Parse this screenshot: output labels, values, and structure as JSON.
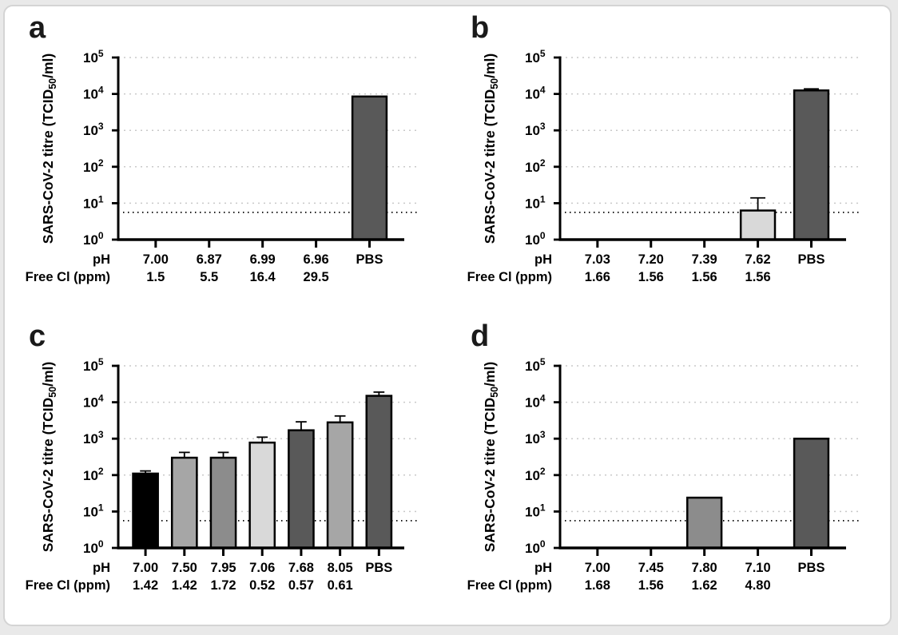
{
  "figure": {
    "panel_labels": [
      "a",
      "b",
      "c",
      "d"
    ],
    "y_axis_title": {
      "pre": "SARS-CoV-2 titre (TCID",
      "sub": "50",
      "post": "/ml)"
    },
    "x_row1_header": "pH",
    "x_row2_header": "Free Cl (ppm)",
    "y_tick_base": "10",
    "y_tick_exponents": [
      0,
      1,
      2,
      3,
      4,
      5
    ],
    "colors": {
      "axis": "#000000",
      "gridline": "#c9c9c9",
      "detection_line": "#000000",
      "bar_dark_gray": "#595959",
      "bar_black": "#000000",
      "bar_medium_gray": "#a6a6a6",
      "bar_medium_dark_gray": "#8c8c8c",
      "bar_light_gray": "#d9d9d9"
    }
  },
  "chart_data": [
    {
      "type": "bar",
      "panel": "a",
      "yscale": "log",
      "ylim": [
        1,
        100000
      ],
      "ylabel": "SARS-CoV-2 titre (TCID50/ml)",
      "grid": true,
      "detection_limit": 5.6,
      "categories_ph": [
        "7.00",
        "6.87",
        "6.99",
        "6.96",
        "PBS"
      ],
      "categories_cl": [
        "1.5",
        "5.5",
        "16.4",
        "29.5",
        ""
      ],
      "values": [
        null,
        null,
        null,
        null,
        8500
      ],
      "errors_upper": [
        null,
        null,
        null,
        null,
        null
      ],
      "bar_colors": [
        null,
        null,
        null,
        null,
        "#595959"
      ]
    },
    {
      "type": "bar",
      "panel": "b",
      "yscale": "log",
      "ylim": [
        1,
        100000
      ],
      "ylabel": "SARS-CoV-2 titre (TCID50/ml)",
      "grid": true,
      "detection_limit": 5.6,
      "categories_ph": [
        "7.03",
        "7.20",
        "7.39",
        "7.62",
        "PBS"
      ],
      "categories_cl": [
        "1.66",
        "1.56",
        "1.56",
        "1.56",
        ""
      ],
      "values": [
        null,
        null,
        null,
        6.3,
        12500
      ],
      "errors_upper": [
        null,
        null,
        null,
        14,
        13800
      ],
      "bar_colors": [
        null,
        null,
        null,
        "#d9d9d9",
        "#595959"
      ]
    },
    {
      "type": "bar",
      "panel": "c",
      "yscale": "log",
      "ylim": [
        1,
        100000
      ],
      "ylabel": "SARS-CoV-2 titre (TCID50/ml)",
      "grid": true,
      "detection_limit": 5.6,
      "categories_ph": [
        "7.00",
        "7.50",
        "7.95",
        "7.06",
        "7.68",
        "8.05",
        "PBS"
      ],
      "categories_cl": [
        "1.42",
        "1.42",
        "1.72",
        "0.52",
        "0.57",
        "0.61",
        ""
      ],
      "values": [
        110,
        300,
        300,
        780,
        1700,
        2800,
        15000
      ],
      "errors_upper": [
        130,
        420,
        420,
        1100,
        2900,
        4200,
        19000
      ],
      "bar_colors": [
        "#000000",
        "#a6a6a6",
        "#8c8c8c",
        "#d9d9d9",
        "#595959",
        "#a6a6a6",
        "#595959"
      ]
    },
    {
      "type": "bar",
      "panel": "d",
      "yscale": "log",
      "ylim": [
        1,
        100000
      ],
      "ylabel": "SARS-CoV-2 titre (TCID50/ml)",
      "grid": true,
      "detection_limit": 5.6,
      "categories_ph": [
        "7.00",
        "7.45",
        "7.80",
        "7.10",
        "PBS"
      ],
      "categories_cl": [
        "1.68",
        "1.56",
        "1.62",
        "4.80",
        ""
      ],
      "values": [
        null,
        null,
        24,
        null,
        1000
      ],
      "errors_upper": [
        null,
        null,
        null,
        null,
        null
      ],
      "bar_colors": [
        null,
        null,
        "#8c8c8c",
        null,
        "#595959"
      ]
    }
  ]
}
